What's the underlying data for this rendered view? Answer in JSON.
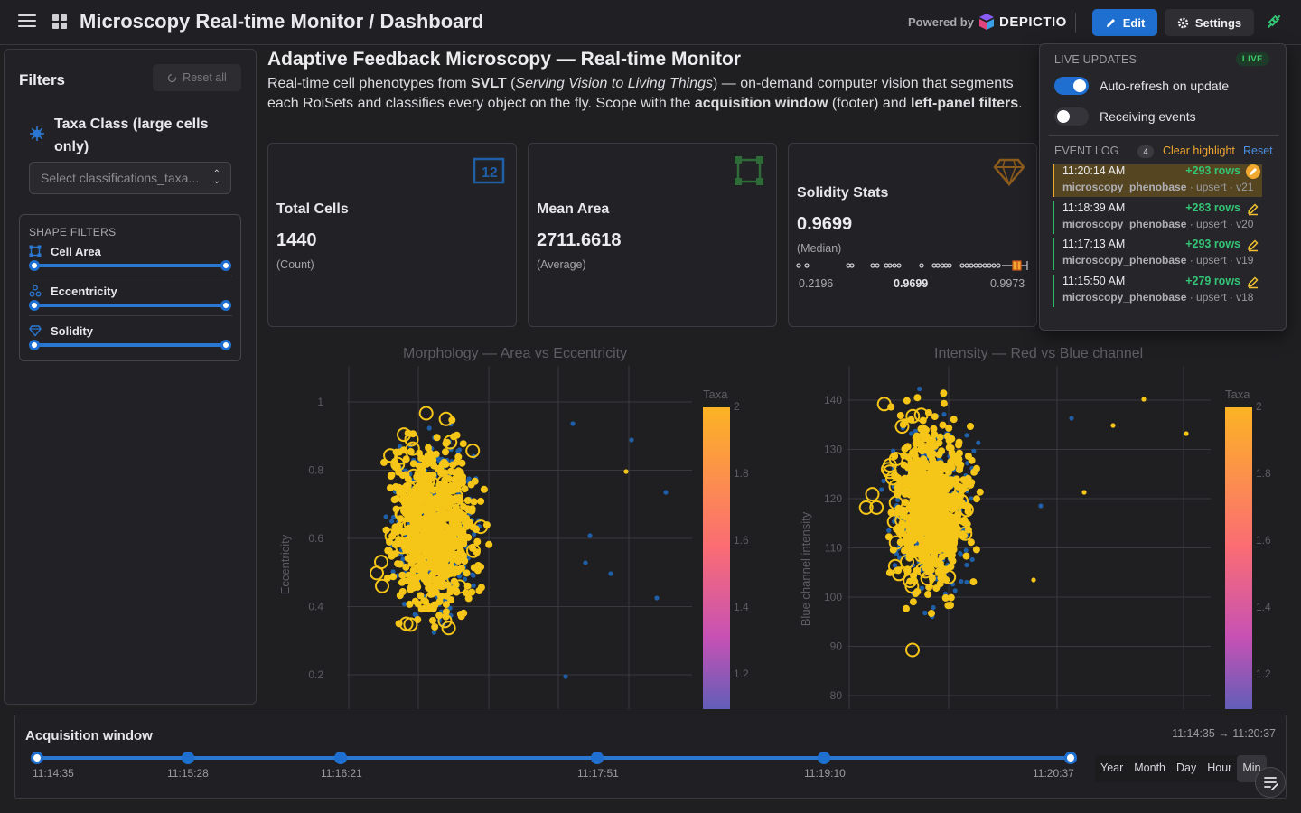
{
  "header": {
    "title": "Microscopy Real-time Monitor / Dashboard",
    "powered_by": "Powered by",
    "logo_text": "DEPICTIO",
    "edit_label": "Edit",
    "settings_label": "Settings"
  },
  "sidebar": {
    "title": "Filters",
    "reset_all": "Reset all",
    "taxa_label": "Taxa Class (large cells only)",
    "select_placeholder": "Select classifications_taxa...",
    "shape_header": "SHAPE FILTERS",
    "shape_filters": [
      {
        "label": "Cell Area"
      },
      {
        "label": "Eccentricity"
      },
      {
        "label": "Solidity"
      }
    ]
  },
  "main": {
    "title": "Adaptive Feedback Microscopy — Real-time Monitor",
    "desc_prefix": "Real-time cell phenotypes from ",
    "desc_svlt": "SVLT",
    "desc_paren_open": " (",
    "desc_svlt_long": "Serving Vision to Living Things",
    "desc_middle": ") — on-demand computer vision that segments each RoiSets and classifies every object on the fly. Scope with the ",
    "desc_acq": "acquisition window",
    "desc_mid2": " (footer) and ",
    "desc_lpf": "left-panel filters",
    "desc_end": "."
  },
  "cards": [
    {
      "title": "Total Cells",
      "value": "1440",
      "subtitle": "(Count)"
    },
    {
      "title": "Mean Area",
      "value": "2711.6618",
      "subtitle": "(Average)"
    },
    {
      "title": "Solidity Stats",
      "value": "0.9699",
      "subtitle": "(Median)",
      "min": "0.2196",
      "median": "0.9699",
      "max": "0.9973"
    }
  ],
  "chart_data": [
    {
      "type": "scatter",
      "title": "Morphology — Area vs Eccentricity",
      "ylabel": "Eccentricity",
      "yticks": [
        "1",
        "0.8",
        "0.6",
        "0.4",
        "0.2"
      ],
      "colorbar_title": "Taxa",
      "colorbar_ticks": [
        "2",
        "1.8",
        "1.6",
        "1.4",
        "1.2"
      ]
    },
    {
      "type": "scatter",
      "title": "Intensity — Red vs Blue channel",
      "ylabel": "Blue channel intensity",
      "yticks": [
        "140",
        "130",
        "120",
        "110",
        "100",
        "90",
        "80"
      ],
      "colorbar_title": "Taxa",
      "colorbar_ticks": [
        "2",
        "1.8",
        "1.6",
        "1.4",
        "1.2"
      ]
    }
  ],
  "live_panel": {
    "header": "LIVE UPDATES",
    "badge": "LIVE",
    "auto_refresh_label": "Auto-refresh on update",
    "auto_refresh_on": true,
    "receiving_label": "Receiving events",
    "receiving_on": false,
    "event_log_label": "EVENT LOG",
    "event_count": "4",
    "clear_highlight": "Clear highlight",
    "reset": "Reset",
    "events": [
      {
        "time": "11:20:14 AM",
        "rows": "+293 rows",
        "table": "microscopy_phenobase",
        "meta": " · upsert · v21",
        "highlighted": true
      },
      {
        "time": "11:18:39 AM",
        "rows": "+283 rows",
        "table": "microscopy_phenobase",
        "meta": " · upsert · v20",
        "highlighted": false
      },
      {
        "time": "11:17:13 AM",
        "rows": "+293 rows",
        "table": "microscopy_phenobase",
        "meta": " · upsert · v19",
        "highlighted": false
      },
      {
        "time": "11:15:50 AM",
        "rows": "+279 rows",
        "table": "microscopy_phenobase",
        "meta": " · upsert · v18",
        "highlighted": false
      }
    ]
  },
  "footer": {
    "title": "Acquisition window",
    "range": "11:14:35 → 11:20:37",
    "ticks": [
      "11:14:35",
      "11:15:28",
      "11:16:21",
      "11:17:51",
      "11:19:10",
      "11:20:37"
    ],
    "granularity": [
      "Year",
      "Month",
      "Day",
      "Hour",
      "Min"
    ],
    "selected_granularity": "Min"
  },
  "colors": {
    "accent": "#1f6fd0",
    "yellow": "#f5c518",
    "blue": "#1f5fa8",
    "green": "#34c475",
    "orange": "#f0a830"
  }
}
